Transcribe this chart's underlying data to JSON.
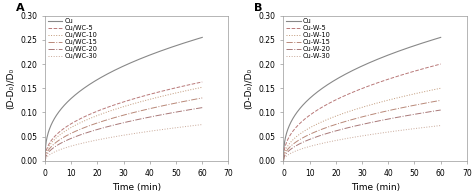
{
  "panel_A": {
    "label": "A",
    "series": [
      {
        "name": "Cu",
        "color": "#888888",
        "ls": "-",
        "lw": 0.8,
        "final": 0.255,
        "power": 0.38
      },
      {
        "name": "Cu/WC-5",
        "color": "#b87878",
        "ls": "--",
        "lw": 0.7,
        "final": 0.163,
        "power": 0.42
      },
      {
        "name": "Cu/WC-10",
        "color": "#c09878",
        "ls": ":",
        "lw": 0.7,
        "final": 0.152,
        "power": 0.44
      },
      {
        "name": "Cu/WC-15",
        "color": "#b88878",
        "ls": "-.",
        "lw": 0.7,
        "final": 0.13,
        "power": 0.46
      },
      {
        "name": "Cu/WC-20",
        "color": "#a87878",
        "ls": "-.",
        "lw": 0.7,
        "final": 0.11,
        "power": 0.48
      },
      {
        "name": "Cu/WC-30",
        "color": "#c8a898",
        "ls": ":",
        "lw": 0.7,
        "final": 0.075,
        "power": 0.5
      }
    ]
  },
  "panel_B": {
    "label": "B",
    "series": [
      {
        "name": "Cu",
        "color": "#888888",
        "ls": "-",
        "lw": 0.8,
        "final": 0.255,
        "power": 0.38
      },
      {
        "name": "Cu-W-5",
        "color": "#b87878",
        "ls": "--",
        "lw": 0.7,
        "final": 0.2,
        "power": 0.42
      },
      {
        "name": "Cu-W-10",
        "color": "#c09878",
        "ls": ":",
        "lw": 0.7,
        "final": 0.15,
        "power": 0.44
      },
      {
        "name": "Cu-W-15",
        "color": "#b88878",
        "ls": "-.",
        "lw": 0.7,
        "final": 0.125,
        "power": 0.46
      },
      {
        "name": "Cu-W-20",
        "color": "#a87878",
        "ls": "-.",
        "lw": 0.7,
        "final": 0.105,
        "power": 0.48
      },
      {
        "name": "Cu-W-30",
        "color": "#c8a898",
        "ls": ":",
        "lw": 0.7,
        "final": 0.073,
        "power": 0.5
      }
    ]
  },
  "xlim": [
    0,
    70
  ],
  "ylim": [
    0.0,
    0.3
  ],
  "xticks": [
    0,
    10,
    20,
    30,
    40,
    50,
    60,
    70
  ],
  "yticks": [
    0.0,
    0.05,
    0.1,
    0.15,
    0.2,
    0.25,
    0.3
  ],
  "xlabel": "Time (min)",
  "ylabel": "(D-D₀)/D₀",
  "tick_fontsize": 5.5,
  "label_fontsize": 6.5,
  "legend_fontsize": 4.8
}
